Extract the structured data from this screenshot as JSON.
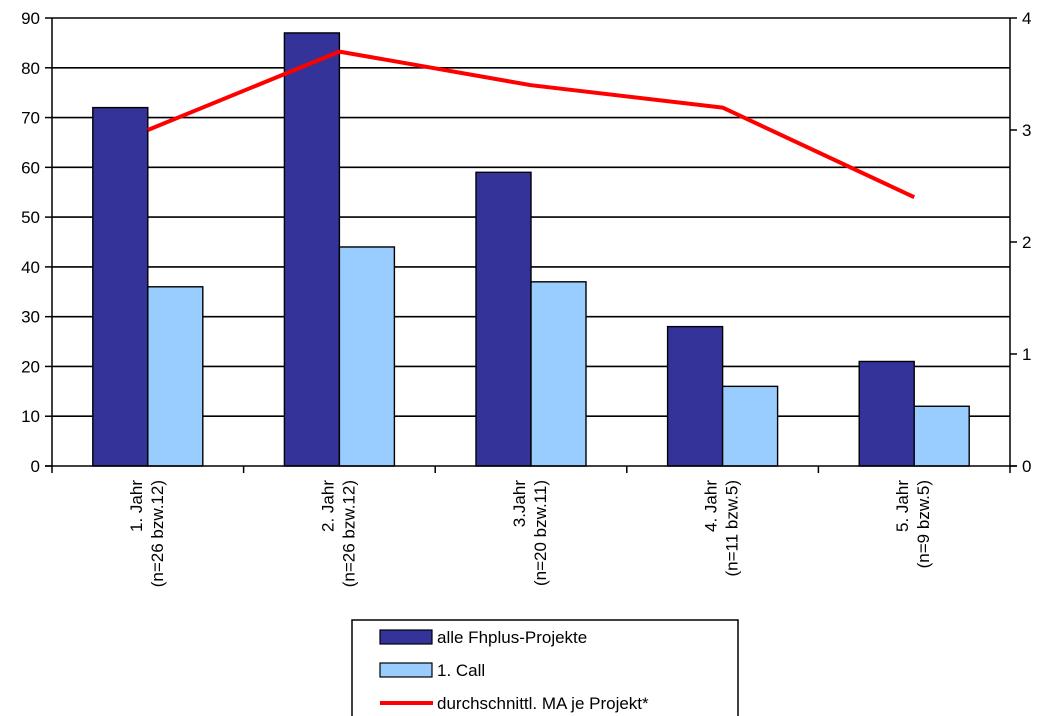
{
  "chart_data": {
    "type": "bar",
    "categories": [
      [
        "1. Jahr",
        "(n=26 bzw.12)"
      ],
      [
        "2. Jahr",
        "(n=26 bzw.12)"
      ],
      [
        "3.Jahr",
        "(n=20 bzw.11)"
      ],
      [
        "4. Jahr",
        "(n=11 bzw.5)"
      ],
      [
        "5. Jahr",
        "(n=9 bzw.5)"
      ]
    ],
    "series": [
      {
        "name": "alle Fhplus-Projekte",
        "type": "bar",
        "axis": "left",
        "color": "#333399",
        "values": [
          72,
          87,
          59,
          28,
          21
        ]
      },
      {
        "name": "1. Call",
        "type": "bar",
        "axis": "left",
        "color": "#99CCFF",
        "values": [
          36,
          44,
          37,
          16,
          12
        ]
      },
      {
        "name": "durchschnittl. MA je Projekt*",
        "type": "line",
        "axis": "right",
        "color": "#FF0000",
        "values": [
          3.0,
          3.7,
          3.4,
          3.2,
          2.4
        ]
      }
    ],
    "y_left": {
      "min": 0,
      "max": 90,
      "step": 10
    },
    "y_right": {
      "min": 0,
      "max": 4,
      "step": 1
    },
    "grid": true,
    "legend_position": "bottom"
  }
}
